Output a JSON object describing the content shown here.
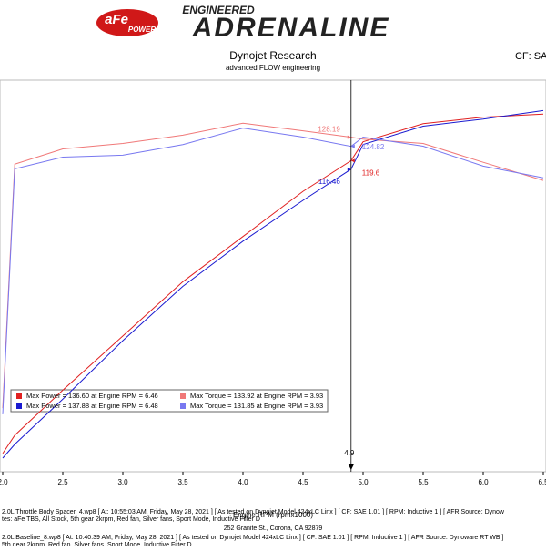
{
  "header": {
    "logo": "aFe",
    "logo_sub": "POWER",
    "engineered": "ENGINEERED",
    "brand": "ADRENALINE",
    "company": "Dynojet Research",
    "subtitle": "advanced FLOW engineering",
    "cf": "CF: SA"
  },
  "chart_data": {
    "type": "line",
    "x_label": "Engine RPM (rpmx1000)",
    "x": [
      2.0,
      2.1,
      2.5,
      3.0,
      3.5,
      4.0,
      4.5,
      4.9,
      5.0,
      5.5,
      6.0,
      6.5
    ],
    "xlim": [
      2.0,
      6.5
    ],
    "xticks": [
      {
        "value": 2,
        "label": "2.0"
      },
      2.5,
      {
        "value": 3,
        "label": "3.0"
      },
      3.5,
      {
        "value": 4,
        "label": "4.0"
      },
      4.5,
      {
        "value": 5,
        "label": "5.0"
      },
      5.5,
      {
        "value": 6,
        "label": "6.0"
      },
      6.5
    ],
    "ylim": [
      6,
      149
    ],
    "series": [
      {
        "name": "Max Power = 136.60 at Engine RPM = 6.46",
        "color": "#e02020",
        "values": [
          12.7,
          19.3,
          35.8,
          55.6,
          75.4,
          91.9,
          108.4,
          119.6,
          126.5,
          133.1,
          135.5,
          136.6
        ]
      },
      {
        "name": "Max Torque = 133.92 at Engine RPM = 3.93",
        "color": "#f07878",
        "values": [
          29.2,
          118.3,
          123.9,
          125.9,
          128.9,
          133.3,
          130.5,
          128.19,
          127.5,
          125.9,
          119.0,
          112.4
        ]
      },
      {
        "name": "Max Power = 137.88 at Engine RPM = 6.48",
        "color": "#1a1ad0",
        "values": [
          11.0,
          16.0,
          32.5,
          53.9,
          73.7,
          90.2,
          105.1,
          116.46,
          125.5,
          132.2,
          134.8,
          137.88
        ]
      },
      {
        "name": "Max Torque = 131.85 at Engine RPM = 3.93",
        "color": "#7878f0",
        "values": [
          27.0,
          116.6,
          120.9,
          121.6,
          125.5,
          131.5,
          128.2,
          124.82,
          128.2,
          124.9,
          117.6,
          113.3
        ]
      }
    ],
    "cursor_x": 4.9,
    "annotations": [
      {
        "value": 128.19,
        "color": "#f07878"
      },
      {
        "value": 124.82,
        "color": "#7878f0"
      },
      {
        "value": 119.6,
        "color": "#e02020"
      },
      {
        "value": 116.46,
        "color": "#1a1ad0"
      }
    ]
  },
  "footer": {
    "address": "252 Granite St., Corona, CA 92879",
    "lines": [
      "2.0L Throttle Body Spacer_4.wp8 [ At: 10:55:03 AM, Friday, May 28, 2021 ] [ As tested on Dynojet Model 424xLC Linx ] [ CF: SAE 1.01 ] [ RPM: Inductive 1 ] [ AFR Source: Dynow",
      "tes: aFe TBS, All Stock, 5th gear 2krpm, Red fan, Silver fans, Sport Mode, Inductive Filter D",
      "2.0L Baseline_8.wp8 [ At: 10:40:39 AM, Friday, May 28, 2021 ] [ As tested on Dynojet Model 424xLC Linx ] [ CF: SAE 1.01 ] [ RPM: Inductive 1 ] [ AFR Source: Dynoware RT WB ]",
      "5th gear 2krpm, Red fan, Silver fans, Sport Mode, Inductive Filter D"
    ]
  }
}
